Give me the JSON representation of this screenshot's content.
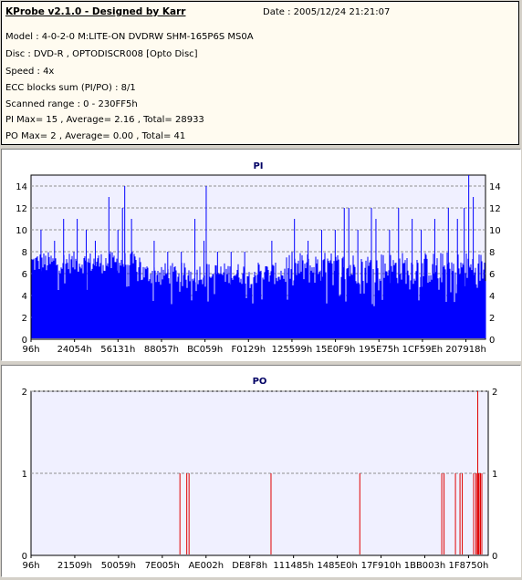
{
  "info": {
    "title": "KProbe v2.1.0 - Designed by Karr",
    "date": "Date : 2005/12/24 21:21:07",
    "lines": [
      "Model : 4-0-2-0 M:LITE-ON DVDRW SHM-165P6S MS0A",
      "Disc : DVD-R , OPTODISCR008 [Opto Disc]",
      "Speed : 4x",
      "ECC blocks sum (PI/PO) : 8/1",
      "Scanned range : 0 - 230FF5h",
      "PI Max= 15 , Average= 2.16 , Total= 28933",
      "PO Max= 2 , Average= 0.00 , Total= 41"
    ]
  },
  "chart_data": [
    {
      "type": "bar",
      "title": "PI",
      "ylim": [
        0,
        15
      ],
      "yticks": [
        0,
        2,
        4,
        6,
        8,
        10,
        12,
        14
      ],
      "xticks": [
        "96h",
        "24054h",
        "56131h",
        "88057h",
        "BC059h",
        "F0129h",
        "125599h",
        "15E0F9h",
        "195E75h",
        "1CF59Eh",
        "207918h"
      ],
      "series_color": "#0000ff",
      "max": 15,
      "average": 2.16,
      "total": 28933,
      "segments": [
        {
          "from": 0.0,
          "to": 0.24,
          "low": 6,
          "high": 8,
          "peaks": [
            [
              0.02,
              10
            ],
            [
              0.05,
              9
            ],
            [
              0.07,
              11
            ],
            [
              0.1,
              11
            ],
            [
              0.12,
              10
            ],
            [
              0.14,
              9
            ],
            [
              0.17,
              13
            ],
            [
              0.19,
              10
            ],
            [
              0.2,
              12
            ],
            [
              0.22,
              11
            ],
            [
              0.205,
              14
            ]
          ]
        },
        {
          "from": 0.24,
          "to": 0.56,
          "low": 5,
          "high": 7,
          "peaks": [
            [
              0.27,
              9
            ],
            [
              0.3,
              8
            ],
            [
              0.33,
              8
            ],
            [
              0.36,
              11
            ],
            [
              0.38,
              9
            ],
            [
              0.385,
              14
            ],
            [
              0.41,
              8
            ],
            [
              0.44,
              8
            ],
            [
              0.47,
              8
            ],
            [
              0.5,
              7
            ],
            [
              0.53,
              9
            ]
          ]
        },
        {
          "from": 0.56,
          "to": 1.0,
          "low": 5,
          "high": 8,
          "peaks": [
            [
              0.58,
              11
            ],
            [
              0.61,
              9
            ],
            [
              0.64,
              10
            ],
            [
              0.67,
              10
            ],
            [
              0.69,
              12
            ],
            [
              0.7,
              12
            ],
            [
              0.72,
              10
            ],
            [
              0.75,
              12
            ],
            [
              0.76,
              11
            ],
            [
              0.79,
              10
            ],
            [
              0.81,
              12
            ],
            [
              0.84,
              11
            ],
            [
              0.86,
              10
            ],
            [
              0.89,
              11
            ],
            [
              0.92,
              12
            ],
            [
              0.94,
              11
            ],
            [
              0.955,
              12
            ],
            [
              0.965,
              15
            ],
            [
              0.975,
              13
            ]
          ]
        }
      ]
    },
    {
      "type": "bar",
      "title": "PO",
      "ylim": [
        0,
        2
      ],
      "yticks": [
        0,
        1,
        2
      ],
      "xticks": [
        "96h",
        "21509h",
        "50059h",
        "7E005h",
        "AE002h",
        "DE8F8h",
        "111485h",
        "1485E0h",
        "17F910h",
        "1BB003h",
        "1F8750h"
      ],
      "series_color": "#e00000",
      "max": 2,
      "average": 0.0,
      "total": 41,
      "points": [
        [
          0.325,
          1
        ],
        [
          0.34,
          1
        ],
        [
          0.345,
          1
        ],
        [
          0.525,
          1
        ],
        [
          0.72,
          1
        ],
        [
          0.9,
          1
        ],
        [
          0.905,
          1
        ],
        [
          0.93,
          1
        ],
        [
          0.94,
          1
        ],
        [
          0.945,
          1
        ],
        [
          0.97,
          1
        ],
        [
          0.975,
          1
        ],
        [
          0.978,
          1
        ],
        [
          0.98,
          1
        ],
        [
          0.982,
          1
        ],
        [
          0.985,
          1
        ],
        [
          0.988,
          1
        ],
        [
          0.979,
          2
        ]
      ]
    }
  ]
}
